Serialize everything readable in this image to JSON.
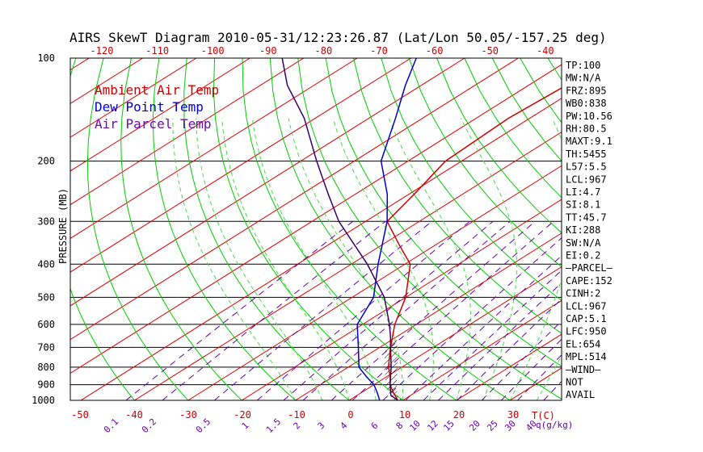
{
  "title": "AIRS SkewT Diagram 2010-05-31/12:23:26.87 (Lat/Lon 50.05/-157.25 deg)",
  "ylabel": "PRESSURE (MB)",
  "tc_label": "T(C)",
  "q_label": "q(g/kg)",
  "legend": [
    {
      "label": "Ambient Air Temp",
      "color": "#cc0000"
    },
    {
      "label": "Dew Point Temp",
      "color": "#0000cc"
    },
    {
      "label": "Air Parcel Temp",
      "color": "#6a0dad"
    }
  ],
  "colors": {
    "temp_line": "#cc0000",
    "dewpoint_line": "#0000cc",
    "parcel_line": "#3a0066",
    "isotherm": "#dd0000",
    "dry_adiabat": "#00cc00",
    "moist_adiabat": "#44dd44",
    "mixing_ratio": "#6600aa",
    "axis_labels": "#cc0000",
    "mixing_labels": "#6600aa"
  },
  "info_panel": [
    "TP:100",
    "MW:N/A",
    "FRZ:895",
    "WB0:838",
    "PW:10.56",
    "RH:80.5",
    "MAXT:9.1",
    "TH:5455",
    "L57:5.5",
    "LCL:967",
    "LI:4.7",
    "SI:8.1",
    "TT:45.7",
    "KI:288",
    "SW:N/A",
    "EI:0.2",
    "—PARCEL—",
    "CAPE:152",
    "CINH:2",
    "LCL:967",
    "CAP:5.1",
    "LFC:950",
    "EL:654",
    "MPL:514",
    "—WIND—",
    "NOT",
    "AVAIL"
  ],
  "chart_data": {
    "type": "line",
    "title": "AIRS SkewT Diagram 2010-05-31/12:23:26.87 (Lat/Lon 50.05/-157.25 deg)",
    "ylabel": "PRESSURE (MB)",
    "xlabel": "T(C)",
    "y_scale": "log-pressure (inverted)",
    "ylim": [
      1000,
      100
    ],
    "pressure_ticks": [
      100,
      200,
      300,
      400,
      500,
      600,
      700,
      800,
      900,
      1000
    ],
    "bottom_temp_ticks": [
      -50,
      -40,
      -30,
      -20,
      -10,
      0,
      10,
      20,
      30
    ],
    "top_temp_ticks": [
      -120,
      -110,
      -100,
      -90,
      -80,
      -70,
      -60,
      -50,
      -40
    ],
    "mixing_ratio_ticks": [
      "0.1",
      "0.2",
      "0.5",
      "1",
      "1.5",
      "2",
      "3",
      "4",
      "6",
      "8",
      "10",
      "12",
      "15",
      "20",
      "25",
      "30",
      "40"
    ],
    "grid": true,
    "series": [
      {
        "name": "Ambient Air Temp",
        "points": [
          {
            "p": 1000,
            "t": 9.1
          },
          {
            "p": 950,
            "t": 6
          },
          {
            "p": 900,
            "t": 3
          },
          {
            "p": 850,
            "t": 0.5
          },
          {
            "p": 800,
            "t": -2.5
          },
          {
            "p": 700,
            "t": -8
          },
          {
            "p": 600,
            "t": -14
          },
          {
            "p": 500,
            "t": -20
          },
          {
            "p": 400,
            "t": -29
          },
          {
            "p": 350,
            "t": -37
          },
          {
            "p": 300,
            "t": -46
          },
          {
            "p": 250,
            "t": -49
          },
          {
            "p": 200,
            "t": -53
          },
          {
            "p": 150,
            "t": -54
          },
          {
            "p": 120,
            "t": -53
          },
          {
            "p": 100,
            "t": -54
          }
        ]
      },
      {
        "name": "Dew Point Temp",
        "points": [
          {
            "p": 1000,
            "t": 5.7
          },
          {
            "p": 950,
            "t": 3
          },
          {
            "p": 900,
            "t": 0
          },
          {
            "p": 850,
            "t": -4
          },
          {
            "p": 800,
            "t": -8
          },
          {
            "p": 700,
            "t": -14
          },
          {
            "p": 600,
            "t": -21
          },
          {
            "p": 500,
            "t": -26
          },
          {
            "p": 400,
            "t": -35
          },
          {
            "p": 300,
            "t": -46
          },
          {
            "p": 250,
            "t": -54
          },
          {
            "p": 200,
            "t": -65
          },
          {
            "p": 150,
            "t": -75
          },
          {
            "p": 120,
            "t": -83
          },
          {
            "p": 100,
            "t": -89
          }
        ]
      },
      {
        "name": "Air Parcel Temp",
        "points": [
          {
            "p": 1000,
            "t": 9.1
          },
          {
            "p": 967,
            "t": 6.3
          },
          {
            "p": 900,
            "t": 3
          },
          {
            "p": 800,
            "t": -2
          },
          {
            "p": 700,
            "t": -8
          },
          {
            "p": 654,
            "t": -11
          },
          {
            "p": 600,
            "t": -15
          },
          {
            "p": 500,
            "t": -24
          },
          {
            "p": 400,
            "t": -37
          },
          {
            "p": 300,
            "t": -55
          },
          {
            "p": 250,
            "t": -65
          },
          {
            "p": 200,
            "t": -77
          },
          {
            "p": 150,
            "t": -92
          },
          {
            "p": 120,
            "t": -105
          },
          {
            "p": 100,
            "t": -114
          }
        ]
      }
    ]
  }
}
